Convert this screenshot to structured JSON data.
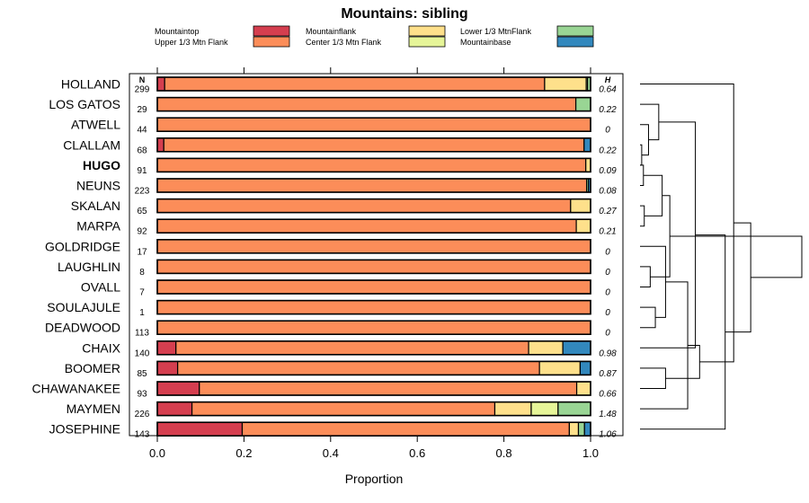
{
  "chart_data": {
    "type": "bar",
    "subtype": "stacked-horizontal-proportion",
    "title": "Mountains: sibling",
    "xlabel": "Proportion",
    "xlim": [
      0,
      1
    ],
    "x_ticks": [
      0.0,
      0.2,
      0.4,
      0.6,
      0.8,
      1.0
    ],
    "x_tick_labels": [
      "0.0",
      "0.2",
      "0.4",
      "0.6",
      "0.8",
      "1.0"
    ],
    "n_header": "N",
    "h_header": "H",
    "highlighted_row": "HUGO",
    "legend": {
      "placement": "top",
      "entries": [
        {
          "name": "Mountaintop",
          "color": "#d53e4f"
        },
        {
          "name": "Upper 1/3 Mtn Flank",
          "color": "#fc8d59"
        },
        {
          "name": "Mountainflank",
          "color": "#fee08b"
        },
        {
          "name": "Center 1/3 Mtn Flank",
          "color": "#e6f598"
        },
        {
          "name": "Lower 1/3 MtnFlank",
          "color": "#99d594"
        },
        {
          "name": "Mountainbase",
          "color": "#3288bd"
        }
      ]
    },
    "series_names": [
      "Mountaintop",
      "Upper 1/3 Mtn Flank",
      "Mountainflank",
      "Center 1/3 Mtn Flank",
      "Lower 1/3 MtnFlank",
      "Mountainbase"
    ],
    "rows": [
      {
        "label": "HOLLAND",
        "n": "299",
        "h": "0.64",
        "values": [
          0.017,
          0.877,
          0.096,
          0.003,
          0.007,
          0.0
        ]
      },
      {
        "label": "LOS GATOS",
        "n": "29",
        "h": "0.22",
        "values": [
          0.0,
          0.966,
          0.0,
          0.0,
          0.034,
          0.0
        ]
      },
      {
        "label": "ATWELL",
        "n": "44",
        "h": "0",
        "values": [
          0.0,
          1.0,
          0.0,
          0.0,
          0.0,
          0.0
        ]
      },
      {
        "label": "CLALLAM",
        "n": "68",
        "h": "0.22",
        "values": [
          0.015,
          0.97,
          0.0,
          0.0,
          0.0,
          0.015
        ]
      },
      {
        "label": "HUGO",
        "n": "91",
        "h": "0.09",
        "values": [
          0.0,
          0.989,
          0.011,
          0.0,
          0.0,
          0.0
        ]
      },
      {
        "label": "NEUNS",
        "n": "223",
        "h": "0.08",
        "values": [
          0.0,
          0.991,
          0.0,
          0.0,
          0.004,
          0.005
        ]
      },
      {
        "label": "SKALAN",
        "n": "65",
        "h": "0.27",
        "values": [
          0.0,
          0.954,
          0.046,
          0.0,
          0.0,
          0.0
        ]
      },
      {
        "label": "MARPA",
        "n": "92",
        "h": "0.21",
        "values": [
          0.0,
          0.967,
          0.033,
          0.0,
          0.0,
          0.0
        ]
      },
      {
        "label": "GOLDRIDGE",
        "n": "17",
        "h": "0",
        "values": [
          0.0,
          1.0,
          0.0,
          0.0,
          0.0,
          0.0
        ]
      },
      {
        "label": "LAUGHLIN",
        "n": "8",
        "h": "0",
        "values": [
          0.0,
          1.0,
          0.0,
          0.0,
          0.0,
          0.0
        ]
      },
      {
        "label": "OVALL",
        "n": "7",
        "h": "0",
        "values": [
          0.0,
          1.0,
          0.0,
          0.0,
          0.0,
          0.0
        ]
      },
      {
        "label": "SOULAJULE",
        "n": "1",
        "h": "0",
        "values": [
          0.0,
          1.0,
          0.0,
          0.0,
          0.0,
          0.0
        ]
      },
      {
        "label": "DEADWOOD",
        "n": "113",
        "h": "0",
        "values": [
          0.0,
          1.0,
          0.0,
          0.0,
          0.0,
          0.0
        ]
      },
      {
        "label": "CHAIX",
        "n": "140",
        "h": "0.98",
        "values": [
          0.043,
          0.814,
          0.079,
          0.0,
          0.0,
          0.064
        ]
      },
      {
        "label": "BOOMER",
        "n": "85",
        "h": "0.87",
        "values": [
          0.047,
          0.835,
          0.094,
          0.0,
          0.0,
          0.024
        ]
      },
      {
        "label": "CHAWANAKEE",
        "n": "93",
        "h": "0.66",
        "values": [
          0.097,
          0.871,
          0.032,
          0.0,
          0.0,
          0.0
        ]
      },
      {
        "label": "MAYMEN",
        "n": "226",
        "h": "1.48",
        "values": [
          0.08,
          0.699,
          0.084,
          0.062,
          0.075,
          0.0
        ]
      },
      {
        "label": "JOSEPHINE",
        "n": "143",
        "h": "1.06",
        "values": [
          0.196,
          0.755,
          0.021,
          0.0,
          0.014,
          0.014
        ]
      }
    ],
    "dendrogram": {
      "placement": "right",
      "merges": [
        {
          "a": 3,
          "b": 4,
          "height": 0.02
        },
        {
          "a": 4,
          "b": 5,
          "height": 0.04
        },
        {
          "a": 6,
          "b": 7,
          "height": 0.05
        },
        {
          "a": 2,
          "b": 18,
          "height": 0.1
        },
        {
          "a": 9,
          "b": 10,
          "height": 0.12
        },
        {
          "a": 11,
          "b": 12,
          "height": 0.18
        },
        {
          "a": 1,
          "b": 21,
          "height": 0.22
        },
        {
          "a": 19,
          "b": 20,
          "height": 0.26
        },
        {
          "a": 8,
          "b": 23,
          "height": 0.3
        },
        {
          "a": 14,
          "b": 15,
          "height": 0.3
        },
        {
          "a": 22,
          "b": 25,
          "height": 0.35
        },
        {
          "a": 26,
          "b": 16,
          "height": 0.56
        },
        {
          "a": 13,
          "b": 24,
          "height": 0.65
        },
        {
          "a": 27,
          "b": 29,
          "height": 0.7
        },
        {
          "a": 17,
          "b": 30,
          "height": 1.0
        },
        {
          "a": 0,
          "b": 31,
          "height": 1.1
        },
        {
          "a": 33,
          "b": 32,
          "height": 1.3
        },
        {
          "a": 34,
          "b": 28,
          "height": 1.9
        }
      ]
    }
  }
}
